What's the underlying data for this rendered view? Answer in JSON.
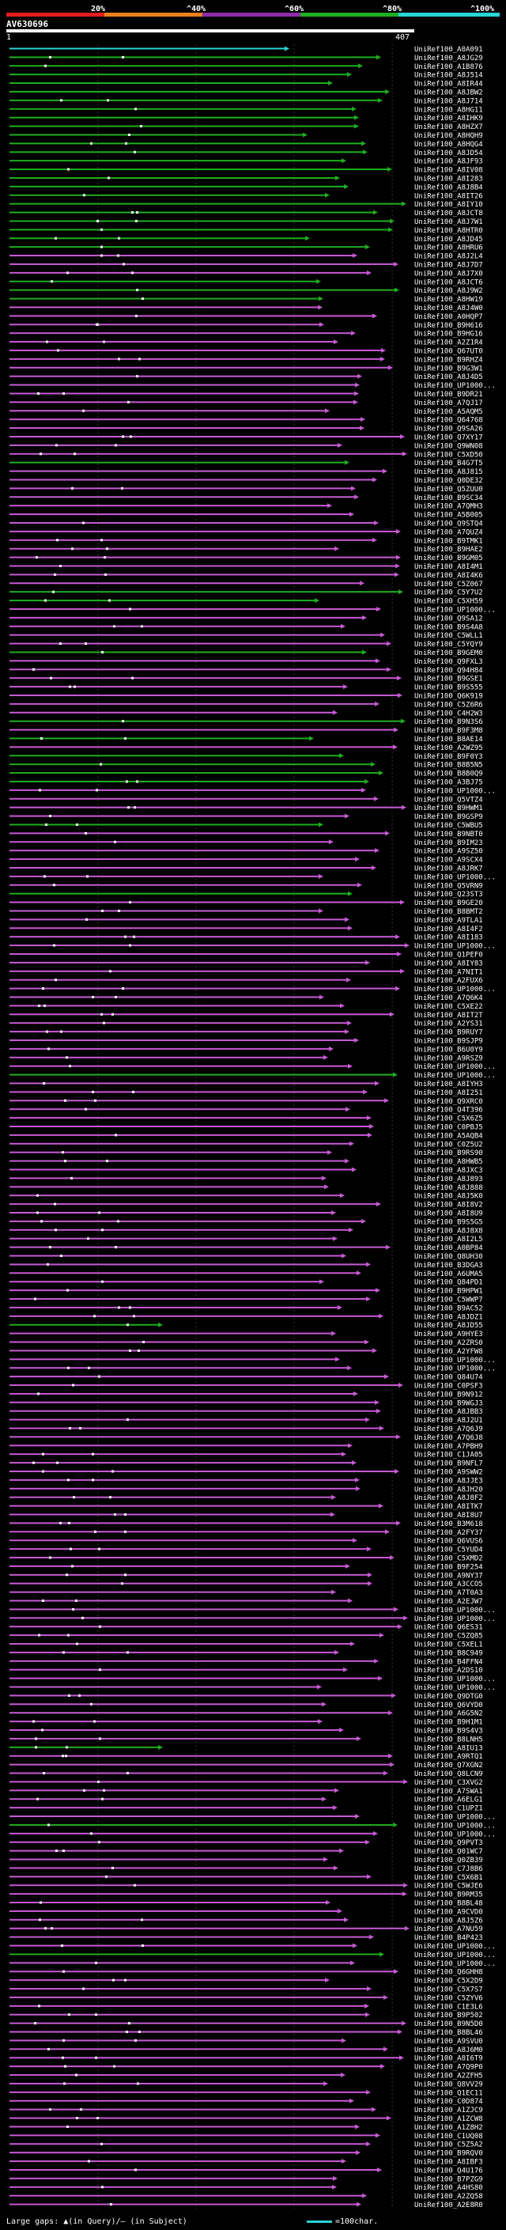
{
  "scale": {
    "labels": [
      "20%",
      "^40%",
      "^60%",
      "^80%",
      "^100%"
    ],
    "colors": [
      "#e01e1e",
      "#e8821e",
      "#8e2ca8",
      "#1fae1f",
      "#2ad4d4"
    ]
  },
  "query": {
    "title": "AV630696",
    "start": "1",
    "end": "407"
  },
  "footer": {
    "legend": "Large gaps: ▲(in Query)/– (in Subject)",
    "key": "=100char."
  },
  "hit_colors": {
    "cyan": "#2ad4d4",
    "green": "#1fae1f",
    "magenta": "#c85ad6",
    "gap": "#ffffff"
  },
  "hits": [
    {
      "id": "UniRef100_A0A091",
      "color": "cyan"
    },
    {
      "id": "UniRef100_A8JG29",
      "color": "green"
    },
    {
      "id": "UniRef100_A1B876",
      "color": "green"
    },
    {
      "id": "UniRef100_A8J514",
      "color": "green"
    },
    {
      "id": "UniRef100_A8IR44",
      "color": "green"
    },
    {
      "id": "UniRef100_A8JBW2",
      "color": "green"
    },
    {
      "id": "UniRef100_A8J714",
      "color": "green"
    },
    {
      "id": "UniRef100_A8HG11",
      "color": "green"
    },
    {
      "id": "UniRef100_A8IHK9",
      "color": "green"
    },
    {
      "id": "UniRef100_A8HZX7",
      "color": "green"
    },
    {
      "id": "UniRef100_A8HQH9",
      "color": "green"
    },
    {
      "id": "UniRef100_A8HQG4",
      "color": "green"
    },
    {
      "id": "UniRef100_A8JD54",
      "color": "green"
    },
    {
      "id": "UniRef100_A8JF93",
      "color": "green"
    },
    {
      "id": "UniRef100_A8IV08",
      "color": "green"
    },
    {
      "id": "UniRef100_A8I283",
      "color": "green"
    },
    {
      "id": "UniRef100_A8J8B4",
      "color": "green"
    },
    {
      "id": "UniRef100_A8IT26",
      "color": "green"
    },
    {
      "id": "UniRef100_A8IY10",
      "color": "green"
    },
    {
      "id": "UniRef100_A8JCT8",
      "color": "green"
    },
    {
      "id": "UniRef100_A8J7W1",
      "color": "green"
    },
    {
      "id": "UniRef100_A8HTR0",
      "color": "green"
    },
    {
      "id": "UniRef100_A8JD45",
      "color": "green"
    },
    {
      "id": "UniRef100_A8HRU6",
      "color": "green"
    },
    {
      "id": "UniRef100_A8J2L4",
      "color": "magenta"
    },
    {
      "id": "UniRef100_A8J7D7",
      "color": "magenta"
    },
    {
      "id": "UniRef100_A8J7X0",
      "color": "magenta"
    },
    {
      "id": "UniRef100_A8JCT6",
      "color": "green"
    },
    {
      "id": "UniRef100_A8J9W2",
      "color": "green"
    },
    {
      "id": "UniRef100_A8HW19",
      "color": "green"
    },
    {
      "id": "UniRef100_A8J4W0",
      "color": "magenta"
    },
    {
      "id": "UniRef100_A0HQP7",
      "color": "magenta"
    },
    {
      "id": "UniRef100_B9H616",
      "color": "magenta"
    },
    {
      "id": "UniRef100_B9HG16",
      "color": "magenta"
    },
    {
      "id": "UniRef100_A2Z1R4",
      "color": "magenta"
    },
    {
      "id": "UniRef100_Q67UT0",
      "color": "magenta"
    },
    {
      "id": "UniRef100_B9RHZ4",
      "color": "magenta"
    },
    {
      "id": "UniRef100_B9G3W1",
      "color": "magenta"
    },
    {
      "id": "UniRef100_A8J4D5",
      "color": "magenta"
    },
    {
      "id": "UniRef100_UP1000...",
      "color": "magenta"
    },
    {
      "id": "UniRef100_B9DR21",
      "color": "magenta"
    },
    {
      "id": "UniRef100_A7QJ17",
      "color": "magenta"
    },
    {
      "id": "UniRef100_A5AQM5",
      "color": "magenta"
    },
    {
      "id": "UniRef100_Q64768",
      "color": "magenta"
    },
    {
      "id": "UniRef100_Q9SA26",
      "color": "magenta"
    },
    {
      "id": "UniRef100_Q7XY17",
      "color": "magenta"
    },
    {
      "id": "UniRef100_Q9WN08",
      "color": "magenta"
    },
    {
      "id": "UniRef100_C5XD50",
      "color": "magenta"
    },
    {
      "id": "UniRef100_B4G7T5",
      "color": "green"
    },
    {
      "id": "UniRef100_A8J815",
      "color": "magenta"
    },
    {
      "id": "UniRef100_Q0DE32",
      "color": "magenta"
    },
    {
      "id": "UniRef100_Q5ZUU0",
      "color": "magenta"
    },
    {
      "id": "UniRef100_B9SC34",
      "color": "magenta"
    },
    {
      "id": "UniRef100_A7QMH3",
      "color": "magenta"
    },
    {
      "id": "UniRef100_A5B005",
      "color": "magenta"
    },
    {
      "id": "UniRef100_Q9STQ4",
      "color": "magenta"
    },
    {
      "id": "UniRef100_A7QUZ4",
      "color": "magenta"
    },
    {
      "id": "UniRef100_B9TMK1",
      "color": "magenta"
    },
    {
      "id": "UniRef100_B9HAE2",
      "color": "magenta"
    },
    {
      "id": "UniRef100_B9GM05",
      "color": "magenta"
    },
    {
      "id": "UniRef100_A8I4M1",
      "color": "magenta"
    },
    {
      "id": "UniRef100_A8I4K6",
      "color": "magenta"
    },
    {
      "id": "UniRef100_C5Z067",
      "color": "magenta"
    },
    {
      "id": "UniRef100_C5Y7U2",
      "color": "green"
    },
    {
      "id": "UniRef100_C5XH59",
      "color": "green"
    },
    {
      "id": "UniRef100_UP1000...",
      "color": "magenta"
    },
    {
      "id": "UniRef100_Q9SA12",
      "color": "magenta"
    },
    {
      "id": "UniRef100_B9S4A8",
      "color": "magenta"
    },
    {
      "id": "UniRef100_C5WLL1",
      "color": "magenta"
    },
    {
      "id": "UniRef100_C5YQY9",
      "color": "magenta"
    },
    {
      "id": "UniRef100_B9GEM0",
      "color": "green"
    },
    {
      "id": "UniRef100_Q9FXL3",
      "color": "magenta"
    },
    {
      "id": "UniRef100_Q94H84",
      "color": "magenta"
    },
    {
      "id": "UniRef100_B9GSE1",
      "color": "magenta"
    },
    {
      "id": "UniRef100_B9S555",
      "color": "magenta"
    },
    {
      "id": "UniRef100_Q6K919",
      "color": "magenta"
    },
    {
      "id": "UniRef100_C5Z6R6",
      "color": "magenta"
    },
    {
      "id": "UniRef100_C4H2W3",
      "color": "magenta"
    },
    {
      "id": "UniRef100_B9N3S6",
      "color": "green"
    },
    {
      "id": "UniRef100_B9F3M8",
      "color": "magenta"
    },
    {
      "id": "UniRef100_B8AE14",
      "color": "green"
    },
    {
      "id": "UniRef100_A2WZ95",
      "color": "magenta"
    },
    {
      "id": "UniRef100_B9F0Y3",
      "color": "green"
    },
    {
      "id": "UniRef100_B8B5N5",
      "color": "green"
    },
    {
      "id": "UniRef100_B8B0Q9",
      "color": "green"
    },
    {
      "id": "UniRef100_A3BJ75",
      "color": "green"
    },
    {
      "id": "UniRef100_UP1000...",
      "color": "magenta"
    },
    {
      "id": "UniRef100_Q5VTZ4",
      "color": "magenta"
    },
    {
      "id": "UniRef100_B9HWM1",
      "color": "magenta"
    },
    {
      "id": "UniRef100_B9GSP9",
      "color": "magenta"
    },
    {
      "id": "UniRef100_C5WBU5",
      "color": "green"
    },
    {
      "id": "UniRef100_B9NBT0",
      "color": "magenta"
    },
    {
      "id": "UniRef100_B9IM23",
      "color": "magenta"
    },
    {
      "id": "UniRef100_A9SZ50",
      "color": "magenta"
    },
    {
      "id": "UniRef100_A9SCX4",
      "color": "magenta"
    },
    {
      "id": "UniRef100_A8JRK7",
      "color": "magenta"
    },
    {
      "id": "UniRef100_UP1000...",
      "color": "magenta"
    },
    {
      "id": "UniRef100_Q5VRN9",
      "color": "magenta"
    },
    {
      "id": "UniRef100_Q23ST3",
      "color": "green"
    },
    {
      "id": "UniRef100_B9GE20",
      "color": "magenta"
    },
    {
      "id": "UniRef100_B8BMT2",
      "color": "magenta"
    },
    {
      "id": "UniRef100_A9TLA1",
      "color": "magenta"
    },
    {
      "id": "UniRef100_A8I4F2",
      "color": "magenta"
    },
    {
      "id": "UniRef100_A8I183",
      "color": "magenta"
    },
    {
      "id": "UniRef100_UP1000...",
      "color": "magenta"
    },
    {
      "id": "UniRef100_Q1PEF0",
      "color": "magenta"
    },
    {
      "id": "UniRef100_A8IY83",
      "color": "magenta"
    },
    {
      "id": "UniRef100_A7NIT1",
      "color": "magenta"
    },
    {
      "id": "UniRef100_A2FUX6",
      "color": "magenta"
    },
    {
      "id": "UniRef100_UP1000...",
      "color": "magenta"
    },
    {
      "id": "UniRef100_A7Q6K4",
      "color": "magenta"
    },
    {
      "id": "UniRef100_C5XE22",
      "color": "magenta"
    },
    {
      "id": "UniRef100_A8IT2T",
      "color": "magenta"
    },
    {
      "id": "UniRef100_A2YS31",
      "color": "magenta"
    },
    {
      "id": "UniRef100_B9RUY7",
      "color": "magenta"
    },
    {
      "id": "UniRef100_B9SJP9",
      "color": "magenta"
    },
    {
      "id": "UniRef100_B6U0Y9",
      "color": "magenta"
    },
    {
      "id": "UniRef100_A9RSZ9",
      "color": "magenta"
    },
    {
      "id": "UniRef100_UP1000...",
      "color": "magenta"
    },
    {
      "id": "UniRef100_UP1000...",
      "color": "green"
    },
    {
      "id": "UniRef100_A8IYH3",
      "color": "magenta"
    },
    {
      "id": "UniRef100_A8I251",
      "color": "magenta"
    },
    {
      "id": "UniRef100_Q9XRC0",
      "color": "magenta"
    },
    {
      "id": "UniRef100_Q4T396",
      "color": "magenta"
    },
    {
      "id": "UniRef100_C5X6Z5",
      "color": "magenta"
    },
    {
      "id": "UniRef100_C0PBJ5",
      "color": "magenta"
    },
    {
      "id": "UniRef100_A5AQB4",
      "color": "magenta"
    },
    {
      "id": "UniRef100_C0Z5U2",
      "color": "magenta"
    },
    {
      "id": "UniRef100_B9RS90",
      "color": "magenta"
    },
    {
      "id": "UniRef100_A8HWB5",
      "color": "magenta"
    },
    {
      "id": "UniRef100_A8JXC3",
      "color": "magenta"
    },
    {
      "id": "UniRef100_A8J893",
      "color": "magenta"
    },
    {
      "id": "UniRef100_A8J888",
      "color": "magenta"
    },
    {
      "id": "UniRef100_A8J5K0",
      "color": "magenta"
    },
    {
      "id": "UniRef100_A8I8V2",
      "color": "magenta"
    },
    {
      "id": "UniRef100_A8I8U9",
      "color": "magenta"
    },
    {
      "id": "UniRef100_B9S5G5",
      "color": "magenta"
    },
    {
      "id": "UniRef100_A8J8X8",
      "color": "magenta"
    },
    {
      "id": "UniRef100_A8I2L5",
      "color": "magenta"
    },
    {
      "id": "UniRef100_A0BP84",
      "color": "magenta"
    },
    {
      "id": "UniRef100_Q8UH30",
      "color": "magenta"
    },
    {
      "id": "UniRef100_B3DGA3",
      "color": "magenta"
    },
    {
      "id": "UniRef100_A6UMA5",
      "color": "magenta"
    },
    {
      "id": "UniRef100_Q84PD1",
      "color": "magenta"
    },
    {
      "id": "UniRef100_B9HPW1",
      "color": "magenta"
    },
    {
      "id": "UniRef100_C5WWP7",
      "color": "magenta"
    },
    {
      "id": "UniRef100_B9AC52",
      "color": "magenta"
    },
    {
      "id": "UniRef100_A8JDZ1",
      "color": "magenta"
    },
    {
      "id": "UniRef100_A8JD55",
      "color": "green"
    },
    {
      "id": "UniRef100_A9HYE3",
      "color": "magenta"
    },
    {
      "id": "UniRef100_A2ZRS0",
      "color": "magenta"
    },
    {
      "id": "UniRef100_A2YFW8",
      "color": "magenta"
    },
    {
      "id": "UniRef100_UP1000...",
      "color": "magenta"
    },
    {
      "id": "UniRef100_UP1000...",
      "color": "magenta"
    },
    {
      "id": "UniRef100_Q84U74",
      "color": "magenta"
    },
    {
      "id": "UniRef100_C0PSF3",
      "color": "magenta"
    },
    {
      "id": "UniRef100_B9N912",
      "color": "magenta"
    },
    {
      "id": "UniRef100_B9WGJ3",
      "color": "magenta"
    },
    {
      "id": "UniRef100_A8JBB3",
      "color": "magenta"
    },
    {
      "id": "UniRef100_A8J2U1",
      "color": "magenta"
    },
    {
      "id": "UniRef100_A7Q6J9",
      "color": "magenta"
    },
    {
      "id": "UniRef100_A7Q6J8",
      "color": "magenta"
    },
    {
      "id": "UniRef100_A7PBH9",
      "color": "magenta"
    },
    {
      "id": "UniRef100_C1JA05",
      "color": "magenta"
    },
    {
      "id": "UniRef100_B9NFL7",
      "color": "magenta"
    },
    {
      "id": "UniRef100_A9SWW2",
      "color": "magenta"
    },
    {
      "id": "UniRef100_A8JJE3",
      "color": "magenta"
    },
    {
      "id": "UniRef100_A8JH20",
      "color": "magenta"
    },
    {
      "id": "UniRef100_A8J8F2",
      "color": "magenta"
    },
    {
      "id": "UniRef100_A8ITK7",
      "color": "magenta"
    },
    {
      "id": "UniRef100_A8I8U7",
      "color": "magenta"
    },
    {
      "id": "UniRef100_B3M618",
      "color": "magenta"
    },
    {
      "id": "UniRef100_A2FY37",
      "color": "magenta"
    },
    {
      "id": "UniRef100_Q6VUS6",
      "color": "magenta"
    },
    {
      "id": "UniRef100_C5YUD4",
      "color": "magenta"
    },
    {
      "id": "UniRef100_C5XMD2",
      "color": "magenta"
    },
    {
      "id": "UniRef100_B9F254",
      "color": "magenta"
    },
    {
      "id": "UniRef100_A9NY37",
      "color": "magenta"
    },
    {
      "id": "UniRef100_A3CCO5",
      "color": "magenta"
    },
    {
      "id": "UniRef100_A7T0A3",
      "color": "magenta"
    },
    {
      "id": "UniRef100_A2EJW7",
      "color": "magenta"
    },
    {
      "id": "UniRef100_UP1000...",
      "color": "magenta"
    },
    {
      "id": "UniRef100_UP1000...",
      "color": "magenta"
    },
    {
      "id": "UniRef100_Q6ES31",
      "color": "magenta"
    },
    {
      "id": "UniRef100_C5ZQ85",
      "color": "magenta"
    },
    {
      "id": "UniRef100_C5XEL1",
      "color": "magenta"
    },
    {
      "id": "UniRef100_B8C949",
      "color": "magenta"
    },
    {
      "id": "UniRef100_B4FFN4",
      "color": "magenta"
    },
    {
      "id": "UniRef100_A2DS10",
      "color": "magenta"
    },
    {
      "id": "UniRef100_UP1000...",
      "color": "magenta"
    },
    {
      "id": "UniRef100_UP1000...",
      "color": "magenta"
    },
    {
      "id": "UniRef100_Q9DTG0",
      "color": "magenta"
    },
    {
      "id": "UniRef100_Q6VYD0",
      "color": "magenta"
    },
    {
      "id": "UniRef100_A6G5N2",
      "color": "magenta"
    },
    {
      "id": "UniRef100_B9H1M1",
      "color": "magenta"
    },
    {
      "id": "UniRef100_B9S4V3",
      "color": "magenta"
    },
    {
      "id": "UniRef100_B8LNH5",
      "color": "magenta"
    },
    {
      "id": "UniRef100_A8IU13",
      "color": "green"
    },
    {
      "id": "UniRef100_A9RTQ1",
      "color": "magenta"
    },
    {
      "id": "UniRef100_Q7XGN2",
      "color": "magenta"
    },
    {
      "id": "UniRef100_Q8LCN9",
      "color": "magenta"
    },
    {
      "id": "UniRef100_C3XVG2",
      "color": "magenta"
    },
    {
      "id": "UniRef100_A7SWA1",
      "color": "magenta"
    },
    {
      "id": "UniRef100_A6ELG1",
      "color": "magenta"
    },
    {
      "id": "UniRef100_C1UPZ1",
      "color": "magenta"
    },
    {
      "id": "UniRef100_UP1000...",
      "color": "magenta"
    },
    {
      "id": "UniRef100_UP1000...",
      "color": "green"
    },
    {
      "id": "UniRef100_UP1000...",
      "color": "magenta"
    },
    {
      "id": "UniRef100_Q9PVT3",
      "color": "magenta"
    },
    {
      "id": "UniRef100_Q01WC7",
      "color": "magenta"
    },
    {
      "id": "UniRef100_Q0ZB39",
      "color": "magenta"
    },
    {
      "id": "UniRef100_C7J8B6",
      "color": "magenta"
    },
    {
      "id": "UniRef100_C5X6B1",
      "color": "magenta"
    },
    {
      "id": "UniRef100_C5WJE6",
      "color": "magenta"
    },
    {
      "id": "UniRef100_B9RM35",
      "color": "magenta"
    },
    {
      "id": "UniRef100_B8BL48",
      "color": "magenta"
    },
    {
      "id": "UniRef100_A9CVD0",
      "color": "magenta"
    },
    {
      "id": "UniRef100_A8J5Z6",
      "color": "magenta"
    },
    {
      "id": "UniRef100_A7NU59",
      "color": "magenta"
    },
    {
      "id": "UniRef100_B4P423",
      "color": "magenta"
    },
    {
      "id": "UniRef100_UP1000...",
      "color": "magenta"
    },
    {
      "id": "UniRef100_UP1000...",
      "color": "green"
    },
    {
      "id": "UniRef100_UP1000...",
      "color": "magenta"
    },
    {
      "id": "UniRef100_Q6GHH8",
      "color": "magenta"
    },
    {
      "id": "UniRef100_C5X2D9",
      "color": "magenta"
    },
    {
      "id": "UniRef100_C5X7S7",
      "color": "magenta"
    },
    {
      "id": "UniRef100_C5ZYV6",
      "color": "magenta"
    },
    {
      "id": "UniRef100_C1E3L6",
      "color": "magenta"
    },
    {
      "id": "UniRef100_B9P502",
      "color": "magenta"
    },
    {
      "id": "UniRef100_B9N5D0",
      "color": "magenta"
    },
    {
      "id": "UniRef100_B8BL46",
      "color": "magenta"
    },
    {
      "id": "UniRef100_A9SVU0",
      "color": "magenta"
    },
    {
      "id": "UniRef100_A8J6M0",
      "color": "magenta"
    },
    {
      "id": "UniRef100_A8I6T9",
      "color": "magenta"
    },
    {
      "id": "UniRef100_A7Q9P0",
      "color": "magenta"
    },
    {
      "id": "UniRef100_A2ZFH5",
      "color": "magenta"
    },
    {
      "id": "UniRef100_Q8VV29",
      "color": "magenta"
    },
    {
      "id": "UniRef100_Q1EC11",
      "color": "magenta"
    },
    {
      "id": "UniRef100_C0D874",
      "color": "magenta"
    },
    {
      "id": "UniRef100_A1ZJC9",
      "color": "magenta"
    },
    {
      "id": "UniRef100_A1ZCW8",
      "color": "magenta"
    },
    {
      "id": "UniRef100_A1Z8H2",
      "color": "magenta"
    },
    {
      "id": "UniRef100_C1UQ08",
      "color": "magenta"
    },
    {
      "id": "UniRef100_C5Z5A2",
      "color": "magenta"
    },
    {
      "id": "UniRef100_B9RQV0",
      "color": "magenta"
    },
    {
      "id": "UniRef100_A8IBF3",
      "color": "magenta"
    },
    {
      "id": "UniRef100_Q4U176",
      "color": "magenta"
    },
    {
      "id": "UniRef100_B7PZG9",
      "color": "magenta"
    },
    {
      "id": "UniRef100_A4HS80",
      "color": "magenta"
    },
    {
      "id": "UniRef100_A2ZQ58",
      "color": "magenta"
    },
    {
      "id": "UniRef100_A2E8R0",
      "color": "magenta"
    }
  ]
}
